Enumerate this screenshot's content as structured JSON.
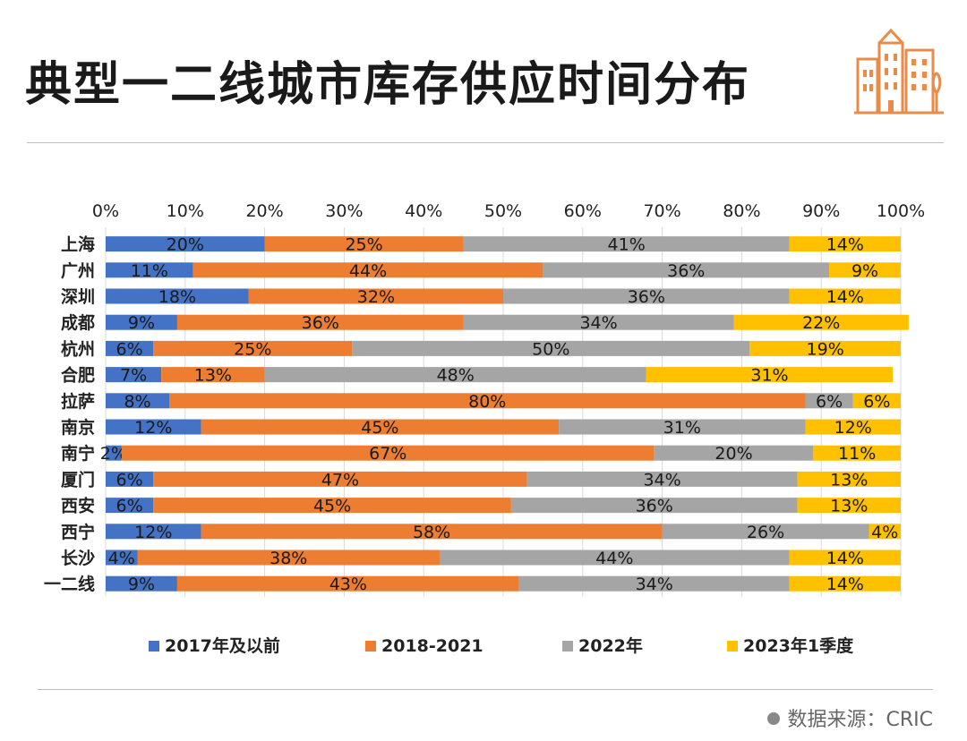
{
  "header": {
    "title": "典型一二线城市库存供应时间分布"
  },
  "chart_data": {
    "type": "bar",
    "orientation": "horizontal",
    "stacked": "percent",
    "categories": [
      "上海",
      "广州",
      "深圳",
      "成都",
      "杭州",
      "合肥",
      "拉萨",
      "南京",
      "南宁",
      "厦门",
      "西安",
      "西宁",
      "长沙",
      "一二线"
    ],
    "series": [
      {
        "name": "2017年及以前",
        "color": "#4472c4",
        "values": [
          20,
          11,
          18,
          9,
          6,
          7,
          8,
          12,
          2,
          6,
          6,
          12,
          4,
          9
        ]
      },
      {
        "name": "2018-2021",
        "color": "#ed7d31",
        "values": [
          25,
          44,
          32,
          36,
          25,
          13,
          80,
          45,
          67,
          47,
          45,
          58,
          38,
          43
        ]
      },
      {
        "name": "2022年",
        "color": "#a5a5a5",
        "values": [
          41,
          36,
          36,
          34,
          50,
          48,
          6,
          31,
          20,
          34,
          36,
          26,
          44,
          34
        ]
      },
      {
        "name": "2023年1季度",
        "color": "#ffc000",
        "values": [
          14,
          9,
          14,
          22,
          19,
          31,
          6,
          12,
          11,
          13,
          13,
          4,
          14,
          14
        ]
      }
    ],
    "x_ticks": [
      "0%",
      "10%",
      "20%",
      "30%",
      "40%",
      "50%",
      "60%",
      "70%",
      "80%",
      "90%",
      "100%"
    ],
    "xlim": [
      0,
      100
    ],
    "x_axis_position": "top",
    "grid": true,
    "legend": "bottom"
  },
  "source": {
    "label": "数据来源：",
    "value": "CRIC"
  },
  "colors": {
    "accent": "#e98c4a",
    "title": "#1a1a1a",
    "rule": "#bdbdbd"
  },
  "icons": {
    "header_icon": "building-icon"
  }
}
